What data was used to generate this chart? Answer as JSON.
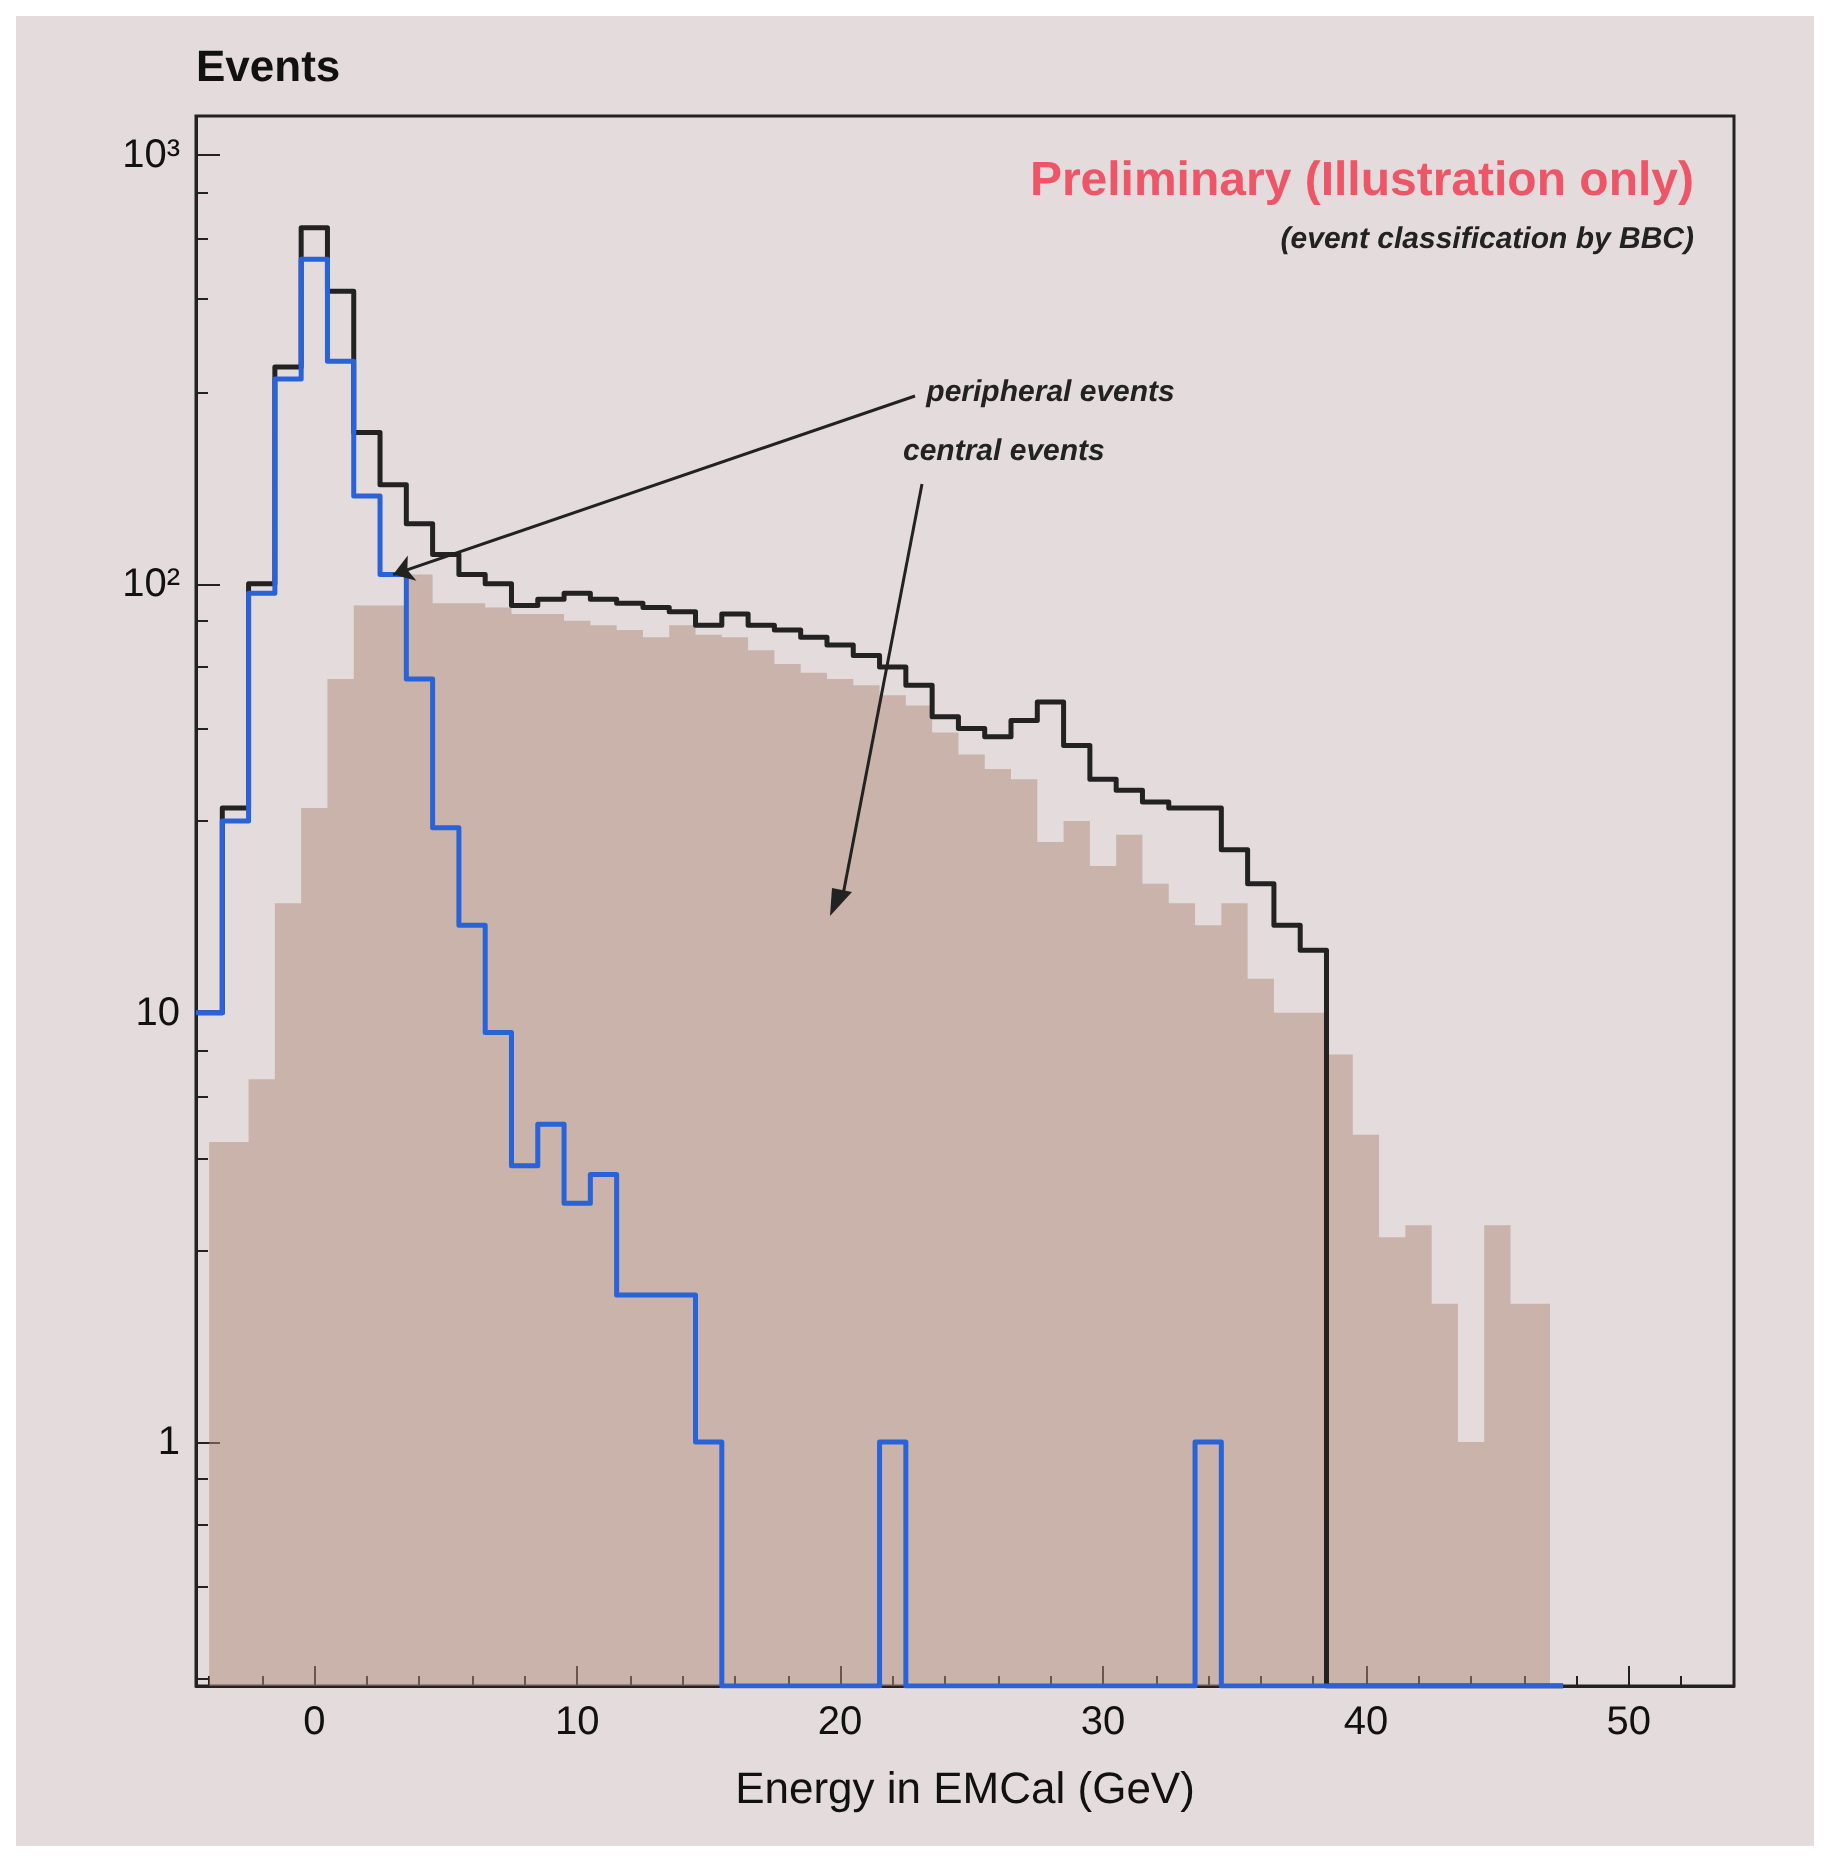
{
  "chart_data": {
    "type": "histogram",
    "xlabel": "Energy in EMCal (GeV)",
    "ylabel": "Events",
    "bins": [
      -4.5,
      -3.5,
      -2.5,
      -1.5,
      -0.5,
      0.5,
      1.5,
      2.5,
      3.5,
      4.5,
      5.5,
      6.5,
      7.5,
      8.5,
      9.5,
      10.5,
      11.5,
      12.5,
      13.5,
      14.5,
      15.5,
      16.5,
      17.5,
      18.5,
      19.5,
      20.5,
      21.5,
      22.5,
      23.5,
      24.5,
      25.5,
      26.5,
      27.5,
      28.5,
      29.5,
      30.5,
      31.5,
      32.5,
      33.5,
      34.5,
      35.5,
      36.5,
      37.5,
      38.5,
      39.5,
      40.5,
      41.5,
      42.5,
      43.5,
      44.5,
      45.5,
      46.5,
      47.5
    ],
    "series": [
      {
        "type": "area",
        "color": "#b08a78",
        "x": [
          -4,
          -3,
          -2,
          -1,
          0,
          1,
          2,
          3,
          4,
          5,
          6,
          7,
          8,
          9,
          10,
          11,
          12,
          13,
          14,
          15,
          16,
          17,
          18,
          19,
          20,
          21,
          22,
          23,
          24,
          25,
          26,
          27,
          28,
          29,
          30,
          31,
          32,
          33,
          34,
          35,
          36,
          37,
          38,
          39,
          40,
          41,
          42,
          43,
          44,
          45,
          46,
          47
        ],
        "values": [
          5,
          5,
          7,
          18,
          30,
          60,
          89,
          89,
          105,
          90,
          90,
          88,
          85,
          85,
          82,
          80,
          78,
          75,
          80,
          76,
          75,
          70,
          65,
          62,
          60,
          58,
          55,
          52,
          45,
          40,
          37,
          35,
          25,
          28,
          22,
          26,
          20,
          18,
          16,
          18,
          12,
          10,
          10,
          8,
          5.2,
          3,
          3.2,
          2.1,
          1,
          3.2,
          2.1,
          2.1
        ]
      },
      {
        "color": "#222222",
        "values": [
          10,
          30,
          100,
          320,
          675,
          480,
          225,
          170,
          138,
          117,
          105,
          100,
          89,
          92,
          95,
          92,
          90,
          88,
          86,
          80,
          85,
          80,
          78,
          75,
          72,
          68,
          64,
          58,
          49,
          46,
          44,
          48,
          53,
          42,
          35,
          33,
          31,
          30,
          30,
          24,
          20,
          16,
          14,
          null,
          null,
          null,
          null,
          null,
          null,
          null,
          null,
          null
        ]
      },
      {
        "color": "#2a62d8",
        "values": [
          10,
          28,
          95,
          300,
          570,
          330,
          160,
          105,
          60,
          27,
          16,
          9,
          4.4,
          5.5,
          3.6,
          4.2,
          2.2,
          2.2,
          2.2,
          1,
          null,
          null,
          null,
          null,
          null,
          null,
          1,
          null,
          null,
          null,
          null,
          null,
          null,
          null,
          null,
          null,
          null,
          null,
          1,
          null,
          null,
          null,
          null,
          null,
          null,
          null,
          null,
          null,
          null,
          null,
          null,
          null
        ]
      }
    ],
    "xlim": [
      -4.5,
      54
    ],
    "xticks": [
      0,
      10,
      20,
      30,
      40,
      50
    ],
    "ylim": [
      0.27,
      1230
    ],
    "log": true,
    "yticks": [
      1,
      10,
      {
        "value": 100,
        "label": "10²"
      },
      {
        "value": 1000,
        "label": "10³"
      }
    ],
    "grid": false,
    "annotations": [
      "Preliminary (Illustration only)",
      "(event classification by BBC)",
      {
        "text": "peripheral events",
        "x": 3,
        "y": 105
      },
      "central events"
    ]
  }
}
